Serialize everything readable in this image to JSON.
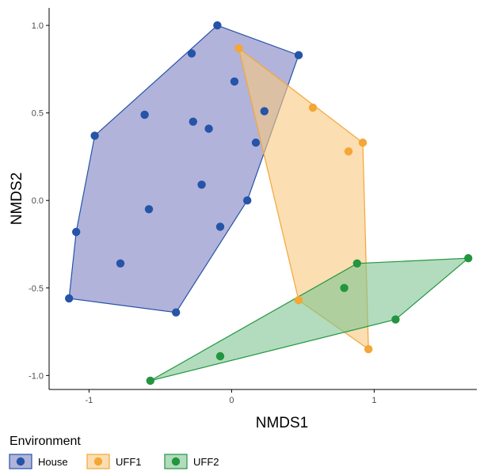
{
  "chart_data": {
    "type": "scatter",
    "title": "",
    "xlabel": "NMDS1",
    "ylabel": "NMDS2",
    "xlim": [
      -1.28,
      1.72
    ],
    "ylim": [
      -1.08,
      1.1
    ],
    "x_ticks": [
      -1,
      0,
      1
    ],
    "x_tick_labels": [
      "-1",
      "0",
      "1"
    ],
    "y_ticks": [
      -1.0,
      -0.5,
      0.0,
      0.5,
      1.0
    ],
    "y_tick_labels": [
      "-1.0",
      "-0.5",
      "0.0",
      "0.5",
      "1.0"
    ],
    "grid": false,
    "legend": {
      "title": "Environment",
      "position": "bottom-left"
    },
    "series": [
      {
        "name": "House",
        "color": "#2554a8",
        "fill": "#7e80c2",
        "hull": [
          [
            -1.14,
            -0.56
          ],
          [
            -1.09,
            -0.18
          ],
          [
            -0.96,
            0.37
          ],
          [
            -0.1,
            1.0
          ],
          [
            0.47,
            0.83
          ],
          [
            0.11,
            0.0
          ],
          [
            -0.39,
            -0.64
          ]
        ],
        "points": [
          [
            -0.1,
            1.0
          ],
          [
            -0.28,
            0.84
          ],
          [
            0.47,
            0.83
          ],
          [
            0.02,
            0.68
          ],
          [
            0.23,
            0.51
          ],
          [
            -0.61,
            0.49
          ],
          [
            -0.27,
            0.45
          ],
          [
            -0.16,
            0.41
          ],
          [
            -0.96,
            0.37
          ],
          [
            0.17,
            0.33
          ],
          [
            -0.21,
            0.09
          ],
          [
            0.11,
            0.0
          ],
          [
            -0.58,
            -0.05
          ],
          [
            -0.08,
            -0.15
          ],
          [
            -1.09,
            -0.18
          ],
          [
            -0.78,
            -0.36
          ],
          [
            -1.14,
            -0.56
          ],
          [
            -0.39,
            -0.64
          ]
        ]
      },
      {
        "name": "UFF1",
        "color": "#f4a636",
        "fill": "#f9c87e",
        "hull": [
          [
            0.05,
            0.87
          ],
          [
            0.92,
            0.33
          ],
          [
            0.96,
            -0.85
          ],
          [
            0.47,
            -0.57
          ]
        ],
        "points": [
          [
            0.05,
            0.87
          ],
          [
            0.57,
            0.53
          ],
          [
            0.92,
            0.33
          ],
          [
            0.82,
            0.28
          ],
          [
            0.47,
            -0.57
          ],
          [
            0.96,
            -0.85
          ]
        ]
      },
      {
        "name": "UFF2",
        "color": "#22963f",
        "fill": "#7fc591",
        "hull": [
          [
            -0.57,
            -1.03
          ],
          [
            0.88,
            -0.36
          ],
          [
            1.66,
            -0.33
          ],
          [
            1.15,
            -0.68
          ]
        ],
        "points": [
          [
            0.88,
            -0.36
          ],
          [
            1.66,
            -0.33
          ],
          [
            0.79,
            -0.5
          ],
          [
            1.15,
            -0.68
          ],
          [
            -0.08,
            -0.89
          ],
          [
            -0.57,
            -1.03
          ]
        ]
      }
    ]
  }
}
